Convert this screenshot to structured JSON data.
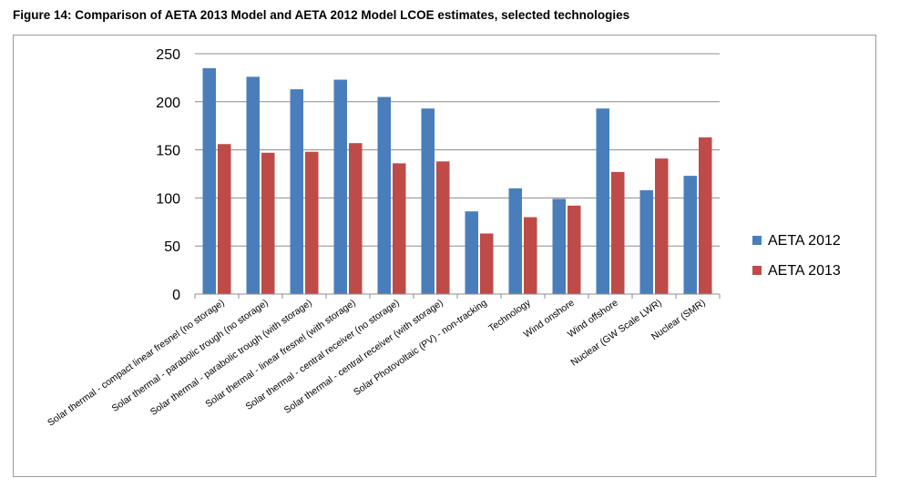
{
  "figure": {
    "title": "Figure 14: Comparison of AETA 2013 Model and AETA 2012 Model LCOE estimates, selected technologies"
  },
  "chart_data": {
    "type": "bar",
    "categories": [
      "Solar thermal - compact linear fresnel (no storage)",
      "Solar thermal - parabolic trough (no storage)",
      "Solar thermal - parabolic trough (with storage)",
      "Solar thermal - linear fresnel (with storage)",
      "Solar thermal - central receiver (no storage)",
      "Solar thermal - central receiver (with storage)",
      "Solar Photovoltaic (PV) - non-tracking",
      "Technology",
      "Wind onshore",
      "Wind offshore",
      "Nuclear (GW Scale LWR)",
      "Nuclear (SMR)"
    ],
    "series": [
      {
        "name": "AETA 2012",
        "color": "#4a7ebb",
        "values": [
          235,
          226,
          213,
          223,
          205,
          193,
          86,
          110,
          99,
          193,
          108,
          123
        ]
      },
      {
        "name": "AETA 2013",
        "color": "#be4b48",
        "values": [
          156,
          147,
          148,
          157,
          136,
          138,
          63,
          80,
          92,
          127,
          141,
          163
        ]
      }
    ],
    "yticks": [
      0,
      50,
      100,
      150,
      200,
      250
    ],
    "ylim": [
      0,
      250
    ],
    "grid": true,
    "legend_position": "right"
  }
}
